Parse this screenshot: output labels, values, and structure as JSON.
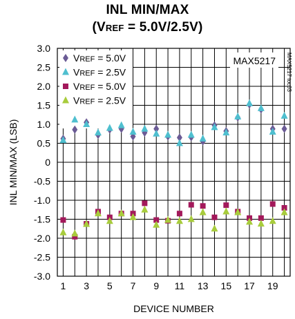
{
  "title_line1": "INL MIN/MAX",
  "title_line2": "(VREF = 5.0V/2.5V)",
  "part_number": "MAX5217",
  "figure_code": "MAX5217 toc03",
  "chart_data": {
    "type": "scatter",
    "title": "INL MIN/MAX (VREF = 5.0V/2.5V)",
    "xlabel": "DEVICE NUMBER",
    "ylabel": "INL MIN/MAX (LSB)",
    "xlim": [
      0.5,
      20.5
    ],
    "ylim": [
      -3.0,
      3.0
    ],
    "x_ticks": [
      1,
      3,
      5,
      7,
      9,
      11,
      13,
      15,
      17,
      19
    ],
    "y_ticks": [
      "3.0",
      "2.5",
      "2.0",
      "1.5",
      "1.0",
      "0.5",
      "0",
      "-0.5",
      "-1.0",
      "-1.5",
      "-2.0",
      "-2.5",
      "-3.0"
    ],
    "grid": true,
    "legend_position": "top-left",
    "x": [
      1,
      2,
      3,
      4,
      5,
      6,
      7,
      8,
      9,
      10,
      11,
      12,
      13,
      14,
      15,
      16,
      17,
      18,
      19,
      20
    ],
    "series": [
      {
        "name": "VREF = 5.0V",
        "marker": "diamond",
        "color": "#6b5b95",
        "values": [
          0.62,
          0.86,
          1.05,
          0.72,
          0.86,
          0.88,
          0.68,
          0.78,
          0.88,
          0.68,
          0.65,
          0.66,
          0.55,
          0.97,
          0.82,
          1.18,
          1.52,
          1.39,
          0.88,
          0.88
        ]
      },
      {
        "name": "VREF = 2.5V",
        "marker": "triangle",
        "color": "#4fbfcf",
        "values": [
          0.58,
          1.12,
          1.0,
          0.78,
          0.9,
          0.97,
          0.8,
          0.88,
          0.75,
          0.72,
          0.5,
          0.72,
          0.62,
          0.92,
          0.78,
          1.2,
          1.55,
          1.42,
          0.8,
          1.22
        ]
      },
      {
        "name": "VREF = 5.0V",
        "marker": "square",
        "color": "#a3195b",
        "values": [
          -1.52,
          -1.96,
          -1.62,
          -1.3,
          -1.45,
          -1.35,
          -1.35,
          -1.08,
          -1.52,
          -1.54,
          -1.35,
          -1.12,
          -1.15,
          -1.45,
          -1.13,
          -1.3,
          -1.47,
          -1.47,
          -1.1,
          -1.2
        ]
      },
      {
        "name": "VREF = 2.5V",
        "marker": "triangle",
        "color": "#a8cc3c",
        "values": [
          -1.85,
          -1.88,
          -1.63,
          -1.35,
          -1.55,
          -1.35,
          -1.45,
          -1.25,
          -1.65,
          -1.52,
          -1.55,
          -1.5,
          -1.32,
          -1.75,
          -1.3,
          -1.32,
          -1.57,
          -1.62,
          -1.55,
          -1.32
        ]
      }
    ]
  }
}
